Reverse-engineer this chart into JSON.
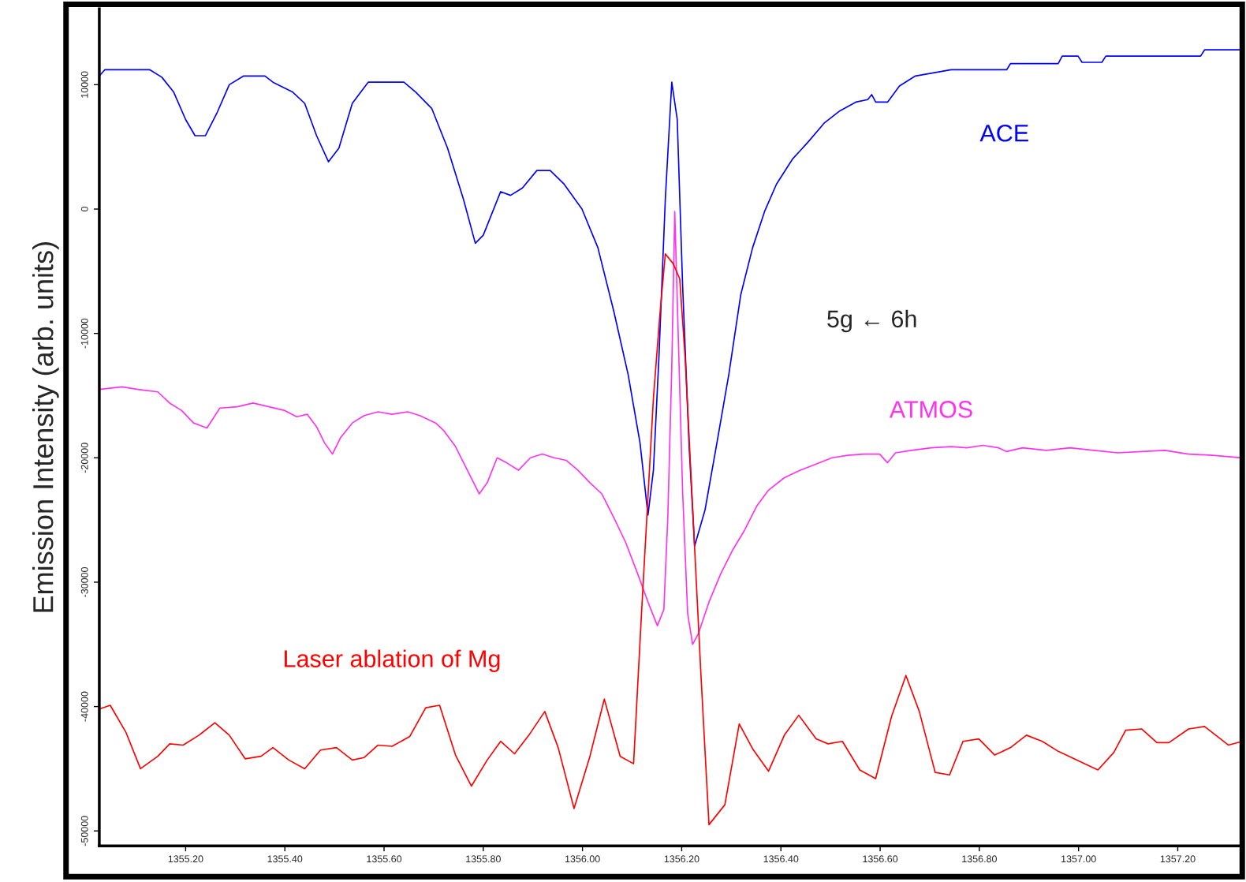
{
  "chart_data": {
    "type": "line",
    "ylabel": "Emission Intensity (arb. units)",
    "annotations": [
      "5g ← 6h"
    ],
    "xlim": [
      1355.026,
      1357.33
    ],
    "ylim": [
      -51200,
      16100
    ],
    "xticks": [
      {
        "value": 1355.2,
        "label": "1355.20"
      },
      {
        "value": 1355.4,
        "label": "1355.40"
      },
      {
        "value": 1355.6,
        "label": "1355.60"
      },
      {
        "value": 1355.8,
        "label": "1355.80"
      },
      {
        "value": 1356.0,
        "label": "1356.00"
      },
      {
        "value": 1356.2,
        "label": "1356.20"
      },
      {
        "value": 1356.4,
        "label": "1356.40"
      },
      {
        "value": 1356.6,
        "label": "1356.60"
      },
      {
        "value": 1356.8,
        "label": "1356.80"
      },
      {
        "value": 1357.0,
        "label": "1357.00"
      },
      {
        "value": 1357.2,
        "label": "1357.20"
      }
    ],
    "yticks": [
      10000,
      0,
      -10000,
      -20000,
      -30000,
      -40000,
      -50000
    ],
    "grid": false,
    "legend": false,
    "marker": "none",
    "line_style": "solid",
    "series": [
      {
        "name": "ACE",
        "color": "#0000ff",
        "x": [
          1355.026,
          1355.037,
          1355.128,
          1355.152,
          1355.176,
          1355.2,
          1355.219,
          1355.24,
          1355.264,
          1355.288,
          1355.317,
          1355.36,
          1355.376,
          1355.416,
          1355.44,
          1355.464,
          1355.488,
          1355.509,
          1355.536,
          1355.568,
          1355.64,
          1355.664,
          1355.696,
          1355.728,
          1355.76,
          1355.784,
          1355.8,
          1355.835,
          1355.855,
          1355.879,
          1355.908,
          1355.935,
          1355.963,
          1355.999,
          1356.031,
          1356.063,
          1356.092,
          1356.116,
          1356.132,
          1356.143,
          1356.154,
          1356.167,
          1356.18,
          1356.191,
          1356.202,
          1356.215,
          1356.226,
          1356.247,
          1356.271,
          1356.295,
          1356.319,
          1356.343,
          1356.367,
          1356.391,
          1356.423,
          1356.455,
          1356.487,
          1356.519,
          1356.551,
          1356.575,
          1356.583,
          1356.591,
          1356.615,
          1356.639,
          1356.671,
          1356.743,
          1356.855,
          1356.863,
          1356.959,
          1356.967,
          1356.999,
          1357.007,
          1357.047,
          1357.055,
          1357.246,
          1357.254,
          1357.33
        ],
        "values": [
          10700,
          11200,
          11200,
          10600,
          9400,
          7200,
          5900,
          5900,
          7800,
          10000,
          10700,
          10700,
          10200,
          9400,
          8500,
          5900,
          3800,
          4900,
          8500,
          10200,
          10200,
          9400,
          8100,
          4900,
          800,
          -2750,
          -2100,
          1400,
          1100,
          1700,
          3100,
          3100,
          2000,
          0,
          -3100,
          -8200,
          -13300,
          -18800,
          -24600,
          -21000,
          -12000,
          800,
          10200,
          7200,
          -6300,
          -19100,
          -27100,
          -24200,
          -18800,
          -13300,
          -6900,
          -3100,
          -200,
          2000,
          4000,
          5400,
          6900,
          7900,
          8600,
          8800,
          9200,
          8600,
          8600,
          9900,
          10700,
          11200,
          11200,
          11700,
          11700,
          12300,
          12300,
          11800,
          11800,
          12300,
          12300,
          12800,
          12800
        ]
      },
      {
        "name": "ATMOS",
        "color": "#ff33ee",
        "x": [
          1355.026,
          1355.072,
          1355.104,
          1355.144,
          1355.168,
          1355.192,
          1355.216,
          1355.243,
          1355.269,
          1355.304,
          1355.336,
          1355.368,
          1355.4,
          1355.424,
          1355.445,
          1355.464,
          1355.48,
          1355.496,
          1355.512,
          1355.536,
          1355.56,
          1355.588,
          1355.616,
          1355.648,
          1355.672,
          1355.704,
          1355.72,
          1355.744,
          1355.768,
          1355.792,
          1355.808,
          1355.828,
          1355.847,
          1355.871,
          1355.895,
          1355.919,
          1355.943,
          1355.967,
          1355.991,
          1356.015,
          1356.039,
          1356.063,
          1356.087,
          1356.111,
          1356.135,
          1356.151,
          1356.164,
          1356.172,
          1356.18,
          1356.186,
          1356.193,
          1356.202,
          1356.212,
          1356.222,
          1356.234,
          1356.255,
          1356.279,
          1356.303,
          1356.327,
          1356.351,
          1356.375,
          1356.407,
          1356.439,
          1356.471,
          1356.503,
          1356.535,
          1356.567,
          1356.599,
          1356.615,
          1356.631,
          1356.663,
          1356.703,
          1356.743,
          1356.775,
          1356.807,
          1356.839,
          1356.855,
          1356.887,
          1356.935,
          1356.983,
          1357.031,
          1357.079,
          1357.127,
          1357.174,
          1357.222,
          1357.27,
          1357.33
        ],
        "values": [
          -14500,
          -14300,
          -14500,
          -14700,
          -15600,
          -16200,
          -17200,
          -17600,
          -16000,
          -15900,
          -15600,
          -15900,
          -16200,
          -16700,
          -16500,
          -17500,
          -18800,
          -19700,
          -18400,
          -17200,
          -16600,
          -16300,
          -16500,
          -16300,
          -16600,
          -17200,
          -17800,
          -19100,
          -21000,
          -22900,
          -22000,
          -20000,
          -20400,
          -21000,
          -20000,
          -19700,
          -20000,
          -20200,
          -21000,
          -22000,
          -22900,
          -24800,
          -26800,
          -29300,
          -31900,
          -33500,
          -32200,
          -24800,
          -12700,
          -200,
          -10100,
          -22900,
          -32500,
          -35000,
          -34100,
          -31600,
          -29300,
          -27400,
          -25800,
          -23900,
          -22600,
          -21600,
          -21000,
          -20500,
          -20000,
          -19800,
          -19700,
          -19700,
          -20400,
          -19600,
          -19400,
          -19200,
          -19100,
          -19200,
          -19000,
          -19200,
          -19500,
          -19200,
          -19400,
          -19200,
          -19400,
          -19600,
          -19500,
          -19400,
          -19700,
          -19800,
          -20000
        ]
      },
      {
        "name": "Laser ablation of Mg",
        "color": "#ff0000",
        "x": [
          1355.026,
          1355.048,
          1355.08,
          1355.109,
          1355.144,
          1355.168,
          1355.195,
          1355.227,
          1355.259,
          1355.288,
          1355.32,
          1355.352,
          1355.376,
          1355.408,
          1355.44,
          1355.472,
          1355.504,
          1355.536,
          1355.56,
          1355.588,
          1355.616,
          1355.652,
          1355.684,
          1355.712,
          1355.744,
          1355.776,
          1355.808,
          1355.835,
          1355.863,
          1355.892,
          1355.924,
          1355.951,
          1355.983,
          1356.015,
          1356.044,
          1356.076,
          1356.103,
          1356.119,
          1356.143,
          1356.156,
          1356.167,
          1356.183,
          1356.196,
          1356.207,
          1356.223,
          1356.239,
          1356.255,
          1356.287,
          1356.316,
          1356.343,
          1356.375,
          1356.407,
          1356.436,
          1356.471,
          1356.495,
          1356.524,
          1356.559,
          1356.591,
          1356.623,
          1356.652,
          1356.679,
          1356.711,
          1356.74,
          1356.767,
          1356.799,
          1356.831,
          1356.863,
          1356.895,
          1356.927,
          1356.959,
          1356.991,
          1357.039,
          1357.071,
          1357.095,
          1357.127,
          1357.158,
          1357.182,
          1357.222,
          1357.254,
          1357.302,
          1357.33
        ],
        "values": [
          -40200,
          -39900,
          -42100,
          -45000,
          -44000,
          -43000,
          -43100,
          -42300,
          -41300,
          -42300,
          -44200,
          -44000,
          -43300,
          -44300,
          -45000,
          -43500,
          -43300,
          -44300,
          -44100,
          -43100,
          -43200,
          -42400,
          -40100,
          -39900,
          -43900,
          -46400,
          -44300,
          -42800,
          -43800,
          -42300,
          -40400,
          -43300,
          -48200,
          -44000,
          -39400,
          -44000,
          -44600,
          -32500,
          -15200,
          -8500,
          -3600,
          -4400,
          -5600,
          -12000,
          -24800,
          -37600,
          -49500,
          -47900,
          -41400,
          -43400,
          -45200,
          -42300,
          -40700,
          -42600,
          -43000,
          -42800,
          -45100,
          -45800,
          -40800,
          -37500,
          -40400,
          -45300,
          -45500,
          -42800,
          -42600,
          -43900,
          -43300,
          -42300,
          -42800,
          -43600,
          -44200,
          -45100,
          -43700,
          -41900,
          -41800,
          -42900,
          -42900,
          -41800,
          -41600,
          -43100,
          -42800
        ]
      }
    ]
  }
}
